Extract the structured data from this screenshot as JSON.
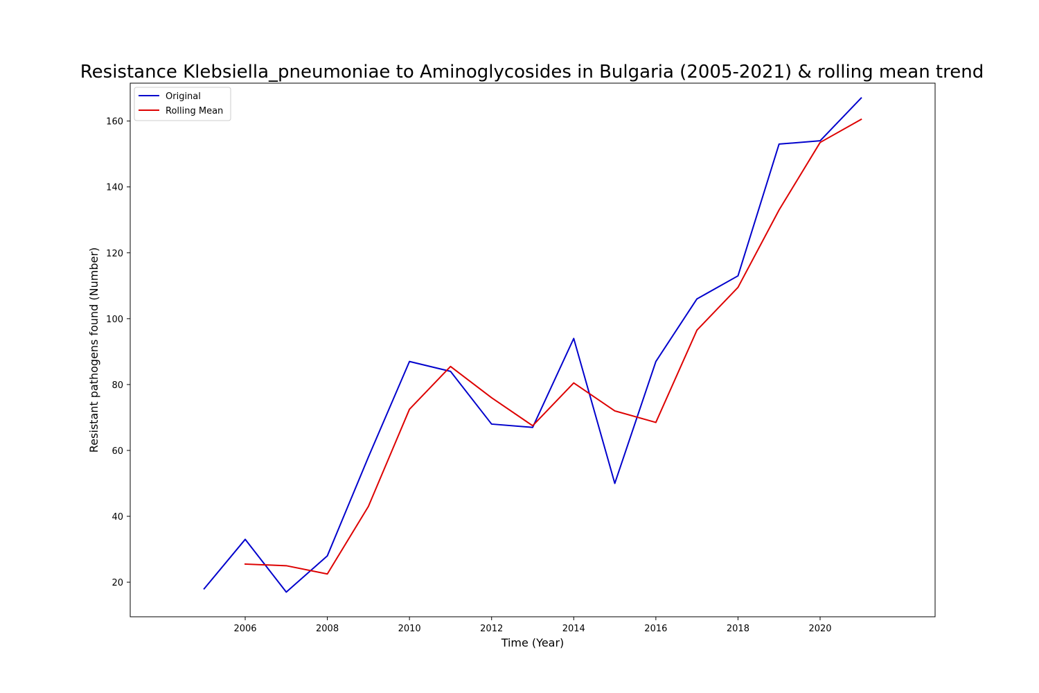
{
  "chart_data": {
    "type": "line",
    "title": "Resistance Klebsiella_pneumoniae to Aminoglycosides in Bulgaria (2005-2021) & rolling mean trend",
    "xlabel": "Time (Year)",
    "ylabel": "Resistant pathogens found (Number)",
    "xlim": [
      2003.2,
      2022.8
    ],
    "ylim": [
      9.5,
      171.5
    ],
    "xticks": [
      2006,
      2008,
      2010,
      2012,
      2014,
      2016,
      2018,
      2020
    ],
    "yticks": [
      20,
      40,
      60,
      80,
      100,
      120,
      140,
      160
    ],
    "grid": false,
    "legend_position": "top-left",
    "series": [
      {
        "name": "Original",
        "color": "#0000cc",
        "x": [
          2005,
          2006,
          2007,
          2008,
          2009,
          2010,
          2011,
          2012,
          2013,
          2014,
          2015,
          2016,
          2017,
          2018,
          2019,
          2020,
          2021
        ],
        "y": [
          18,
          33,
          17,
          28,
          58,
          87,
          84,
          68,
          67,
          94,
          50,
          87,
          106,
          113,
          153,
          154,
          167
        ]
      },
      {
        "name": "Rolling Mean",
        "color": "#dd0000",
        "x": [
          2006,
          2007,
          2008,
          2009,
          2010,
          2011,
          2012,
          2013,
          2014,
          2015,
          2016,
          2017,
          2018,
          2019,
          2020,
          2021
        ],
        "y": [
          25.5,
          25,
          22.5,
          43,
          72.5,
          85.5,
          76,
          67.5,
          80.5,
          72,
          68.5,
          96.5,
          109.5,
          133,
          153.5,
          160.5
        ]
      }
    ]
  }
}
